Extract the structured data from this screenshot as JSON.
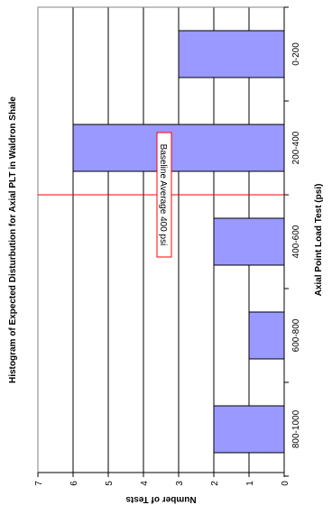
{
  "chart_data": {
    "type": "bar",
    "orientation": "rotated-90-clockwise",
    "title": "Histogram of Expected Disturbution for Axial PLT in Waldron Shale",
    "xlabel": "Axial Point Load Test (psi)",
    "ylabel": "Number of Tests",
    "categories": [
      "0-200",
      "200-400",
      "400-600",
      "600-800",
      "800-1000"
    ],
    "values": [
      3,
      6,
      2,
      1,
      2
    ],
    "ylim": [
      0,
      7
    ],
    "yticks": [
      0,
      1,
      2,
      3,
      4,
      5,
      6,
      7
    ],
    "grid": true,
    "legend": "none",
    "bar_color": "#9999ff",
    "annotation": {
      "text": "Baseline Average 400 psi",
      "x_value": 400,
      "color": "#ff0000"
    }
  }
}
